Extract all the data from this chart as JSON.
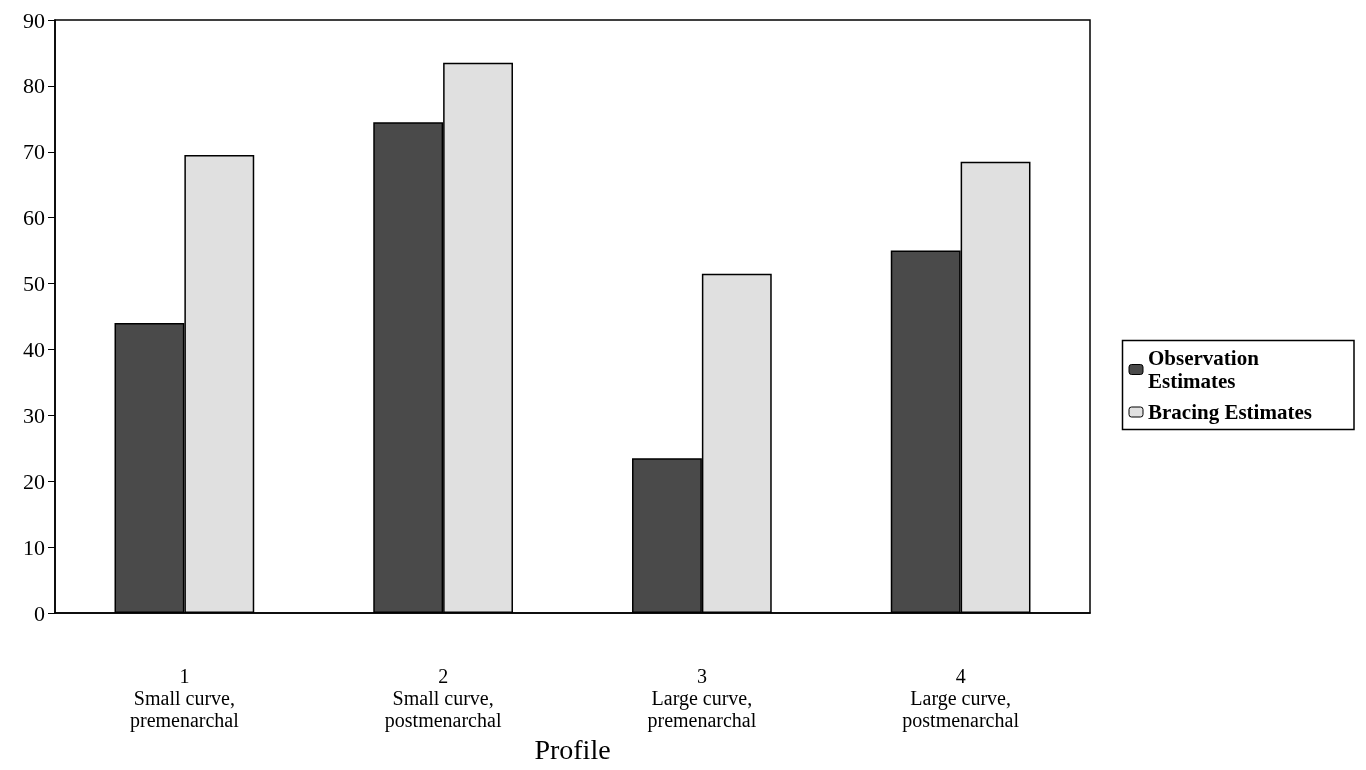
{
  "chart_data": {
    "type": "bar",
    "xlabel": "Profile",
    "categories": [
      "1\nSmall curve,\npremenarchal",
      "2\nSmall curve,\npostmenarchal",
      "3\nLarge curve,\npremenarchal",
      "4\nLarge curve,\npostmenarchal"
    ],
    "series": [
      {
        "name": "Observation Estimates",
        "color": "#4a4a4a",
        "values": [
          44,
          74.5,
          23.5,
          55
        ]
      },
      {
        "name": "Bracing Estimates",
        "color": "#e0e0e0",
        "values": [
          69.5,
          83.5,
          51.5,
          68.5
        ]
      }
    ],
    "ylim": [
      0,
      90
    ],
    "yticks": [
      0,
      10,
      20,
      30,
      40,
      50,
      60,
      70,
      80,
      90
    ],
    "grid": false,
    "legend": "right"
  }
}
